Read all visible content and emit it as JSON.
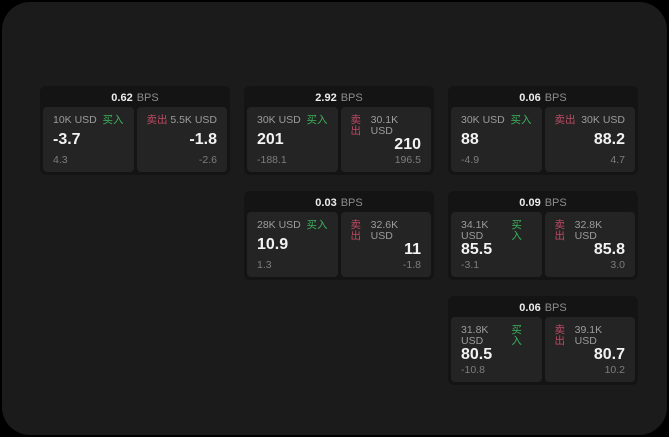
{
  "colors": {
    "outer_bg": "#000000",
    "screen_bg": "#1b1b1b",
    "card_bg": "#141414",
    "panel_bg": "#242424",
    "primary_text": "#f2f2f2",
    "muted_text": "#9c9c9c",
    "sub_text": "#7d7d7d",
    "buy_green": "#3cb25c",
    "sell_red": "#c04a63"
  },
  "cards": [
    {
      "bps": "0.62",
      "bps_unit": "BPS",
      "buy": {
        "amount": "10K USD",
        "side": "买入",
        "value": "-3.7",
        "sub": "4.3"
      },
      "sell": {
        "side": "卖出",
        "amount": "5.5K USD",
        "value": "-1.8",
        "sub": "-2.6"
      }
    },
    {
      "bps": "2.92",
      "bps_unit": "BPS",
      "buy": {
        "amount": "30K USD",
        "side": "买入",
        "value": "201",
        "sub": "-188.1"
      },
      "sell": {
        "side": "卖出",
        "amount": "30.1K USD",
        "value": "210",
        "sub": "196.5"
      }
    },
    {
      "bps": "0.06",
      "bps_unit": "BPS",
      "buy": {
        "amount": "30K USD",
        "side": "买入",
        "value": "88",
        "sub": "-4.9"
      },
      "sell": {
        "side": "卖出",
        "amount": "30K USD",
        "value": "88.2",
        "sub": "4.7"
      }
    },
    {
      "bps": "0.03",
      "bps_unit": "BPS",
      "buy": {
        "amount": "28K USD",
        "side": "买入",
        "value": "10.9",
        "sub": "1.3"
      },
      "sell": {
        "side": "卖出",
        "amount": "32.6K USD",
        "value": "11",
        "sub": "-1.8"
      }
    },
    {
      "bps": "0.09",
      "bps_unit": "BPS",
      "buy": {
        "amount": "34.1K USD",
        "side": "买入",
        "value": "85.5",
        "sub": "-3.1"
      },
      "sell": {
        "side": "卖出",
        "amount": "32.8K USD",
        "value": "85.8",
        "sub": "3.0"
      }
    },
    {
      "bps": "0.06",
      "bps_unit": "BPS",
      "buy": {
        "amount": "31.8K USD",
        "side": "买入",
        "value": "80.5",
        "sub": "-10.8"
      },
      "sell": {
        "side": "卖出",
        "amount": "39.1K USD",
        "value": "80.7",
        "sub": "10.2"
      }
    }
  ]
}
